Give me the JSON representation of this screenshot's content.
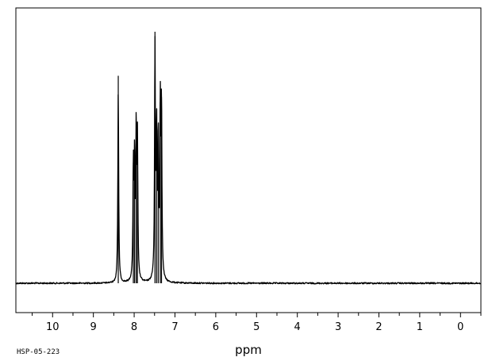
{
  "chart_data": {
    "type": "line",
    "title": "",
    "xlabel": "ppm",
    "ylabel": "",
    "xlim": [
      10.9,
      -0.5
    ],
    "ylim": [
      0,
      1
    ],
    "x_reversed": true,
    "grid": false,
    "baseline": 0.0,
    "x_ticks": [
      10,
      9,
      8,
      7,
      6,
      5,
      4,
      3,
      2,
      1,
      0
    ],
    "x_tick_labels": [
      "10",
      "9",
      "8",
      "7",
      "6",
      "5",
      "4",
      "3",
      "2",
      "1",
      "0"
    ],
    "peaks": [
      {
        "x": 8.39,
        "y": 0.825
      },
      {
        "x": 8.02,
        "y": 0.48
      },
      {
        "x": 7.99,
        "y": 0.5
      },
      {
        "x": 7.95,
        "y": 0.62
      },
      {
        "x": 7.92,
        "y": 0.58
      },
      {
        "x": 7.49,
        "y": 1.0
      },
      {
        "x": 7.45,
        "y": 0.62
      },
      {
        "x": 7.41,
        "y": 0.6
      },
      {
        "x": 7.36,
        "y": 0.72
      },
      {
        "x": 7.33,
        "y": 0.74
      }
    ],
    "series": [
      {
        "values_description_free": true
      }
    ]
  },
  "footer": {
    "code": "HSP-05-223"
  }
}
